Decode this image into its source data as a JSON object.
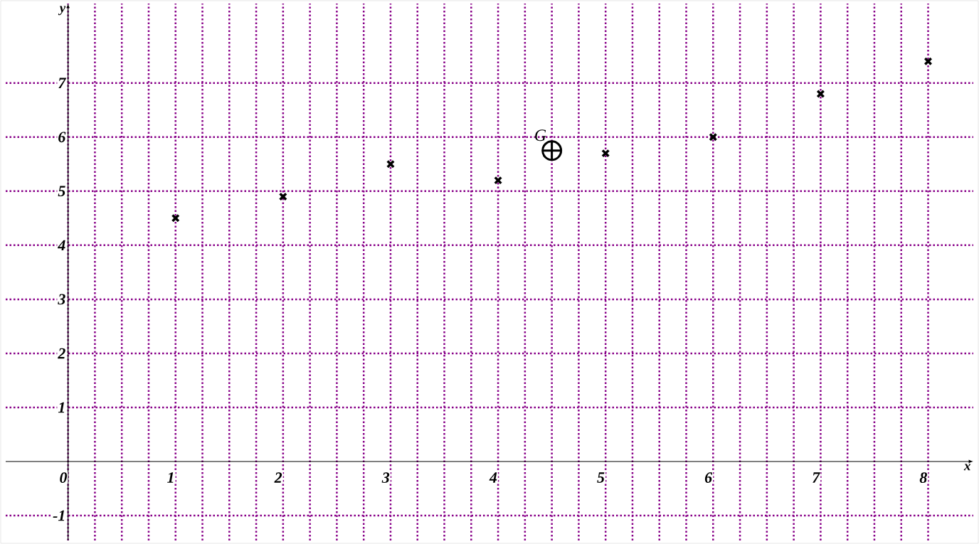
{
  "chart_data": {
    "type": "scatter",
    "xlabel": "x",
    "ylabel": "y",
    "x": [
      1,
      2,
      3,
      4,
      5,
      6,
      7,
      8
    ],
    "values": [
      4.5,
      4.9,
      5.5,
      5.2,
      5.7,
      6,
      6.8,
      7.4
    ],
    "color": "#000000",
    "marker": "cross",
    "grid": true,
    "xlim": [
      -0.58,
      8.42
    ],
    "ylim": [
      -1.46,
      8.47
    ],
    "xticks": [
      0,
      1,
      2,
      3,
      4,
      5,
      6,
      7,
      8
    ],
    "yticks": [
      -1,
      1,
      2,
      3,
      4,
      5,
      6,
      7
    ],
    "annotations": [
      {
        "text": "G",
        "x": 4.5,
        "y": 5.75
      }
    ]
  }
}
